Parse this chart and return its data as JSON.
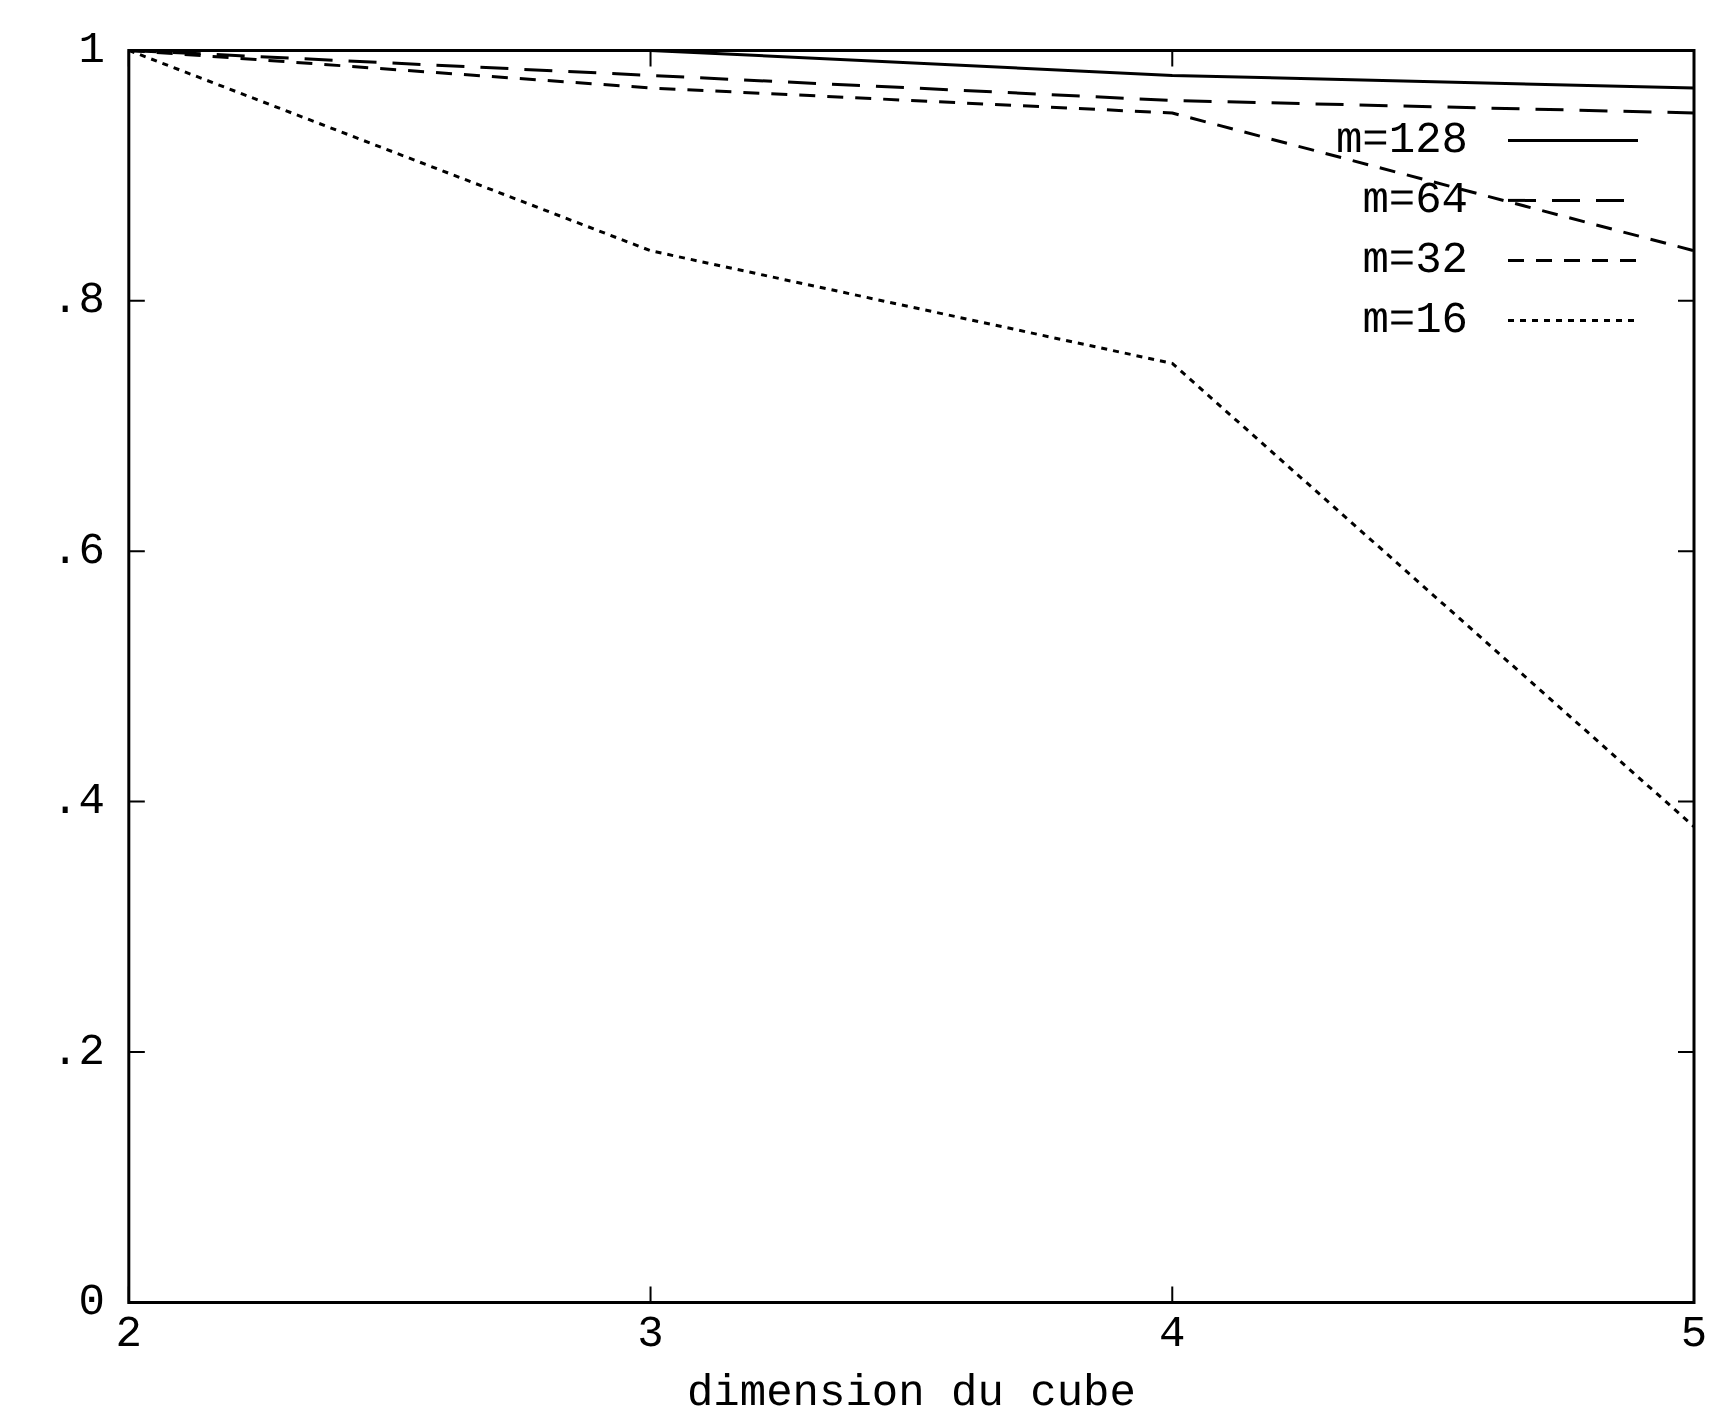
{
  "chart_data": {
    "type": "line",
    "xlabel": "dimension du cube",
    "x": [
      2,
      3,
      4,
      5
    ],
    "xlim": [
      2,
      5
    ],
    "xticks": [
      2,
      3,
      4,
      5
    ],
    "ylim": [
      0,
      1
    ],
    "yticks": [
      0,
      {
        "value": 0.2,
        "label": ".2"
      },
      {
        "value": 0.4,
        "label": ".4"
      },
      {
        "value": 0.6,
        "label": ".6"
      },
      {
        "value": 0.8,
        "label": ".8"
      },
      1
    ],
    "grid": false,
    "legend": "top right",
    "marker": "none",
    "series": [
      {
        "name": "m=128",
        "color": "#000000",
        "line_style": "solid",
        "values": [
          1,
          1,
          0.98,
          0.97
        ]
      },
      {
        "name": "m=64",
        "color": "#000000",
        "line_style": "dashed",
        "values": [
          1,
          0.98,
          0.96,
          0.95
        ]
      },
      {
        "name": "m=32",
        "color": "#000000",
        "line_style": "dashed",
        "values": [
          1,
          0.97,
          0.95,
          0.84
        ]
      },
      {
        "name": "m=16",
        "color": "#000000",
        "line_style": "dotted",
        "values": [
          1,
          0.84,
          0.75,
          0.38
        ]
      }
    ]
  }
}
